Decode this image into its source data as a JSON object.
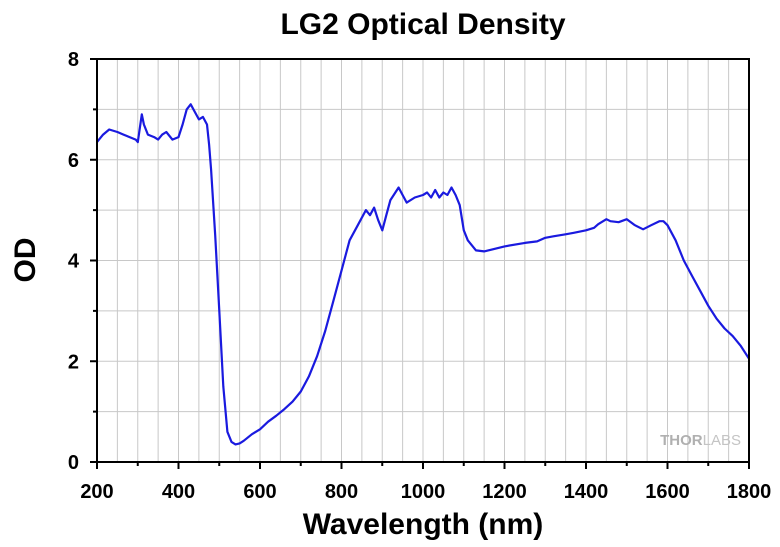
{
  "chart_data": {
    "type": "line",
    "title": "LG2 Optical Density",
    "xlabel": "Wavelength (nm)",
    "ylabel": "OD",
    "xlim": [
      200,
      1800
    ],
    "ylim": [
      0,
      8
    ],
    "x_ticks": [
      200,
      400,
      600,
      800,
      1000,
      1200,
      1400,
      1600,
      1800
    ],
    "y_ticks": [
      0,
      2,
      4,
      6,
      8
    ],
    "grid": true,
    "legend": "none",
    "series": [
      {
        "color": "#1a1adf",
        "x": [
          200,
          215,
          230,
          250,
          265,
          280,
          295,
          300,
          310,
          315,
          325,
          340,
          350,
          360,
          370,
          385,
          400,
          410,
          420,
          430,
          440,
          450,
          460,
          470,
          475,
          480,
          490,
          500,
          510,
          520,
          530,
          540,
          550,
          560,
          580,
          600,
          620,
          640,
          660,
          680,
          700,
          720,
          740,
          760,
          780,
          800,
          820,
          840,
          860,
          870,
          880,
          890,
          900,
          910,
          920,
          940,
          950,
          960,
          980,
          1000,
          1010,
          1020,
          1030,
          1040,
          1050,
          1060,
          1070,
          1080,
          1090,
          1100,
          1110,
          1130,
          1150,
          1170,
          1200,
          1250,
          1280,
          1300,
          1320,
          1350,
          1370,
          1400,
          1420,
          1430,
          1450,
          1460,
          1480,
          1500,
          1520,
          1540,
          1560,
          1580,
          1590,
          1600,
          1620,
          1640,
          1660,
          1680,
          1700,
          1720,
          1740,
          1760,
          1780,
          1800
        ],
        "y": [
          6.35,
          6.5,
          6.6,
          6.55,
          6.5,
          6.45,
          6.4,
          6.35,
          6.9,
          6.7,
          6.5,
          6.45,
          6.4,
          6.5,
          6.55,
          6.4,
          6.45,
          6.7,
          7.0,
          7.1,
          6.95,
          6.8,
          6.85,
          6.7,
          6.3,
          5.8,
          4.5,
          3.0,
          1.5,
          0.6,
          0.4,
          0.35,
          0.37,
          0.42,
          0.55,
          0.65,
          0.8,
          0.92,
          1.05,
          1.2,
          1.4,
          1.7,
          2.1,
          2.6,
          3.2,
          3.8,
          4.4,
          4.7,
          5.0,
          4.9,
          5.05,
          4.8,
          4.6,
          4.9,
          5.2,
          5.45,
          5.3,
          5.15,
          5.25,
          5.3,
          5.35,
          5.25,
          5.4,
          5.25,
          5.35,
          5.3,
          5.45,
          5.3,
          5.1,
          4.6,
          4.4,
          4.2,
          4.18,
          4.22,
          4.28,
          4.35,
          4.38,
          4.45,
          4.48,
          4.52,
          4.55,
          4.6,
          4.65,
          4.72,
          4.82,
          4.78,
          4.76,
          4.82,
          4.7,
          4.62,
          4.7,
          4.78,
          4.78,
          4.7,
          4.4,
          4.0,
          3.7,
          3.4,
          3.1,
          2.85,
          2.65,
          2.5,
          2.3,
          2.05
        ]
      }
    ],
    "watermark": {
      "text_a": "THOR",
      "text_b": "LABS"
    }
  }
}
